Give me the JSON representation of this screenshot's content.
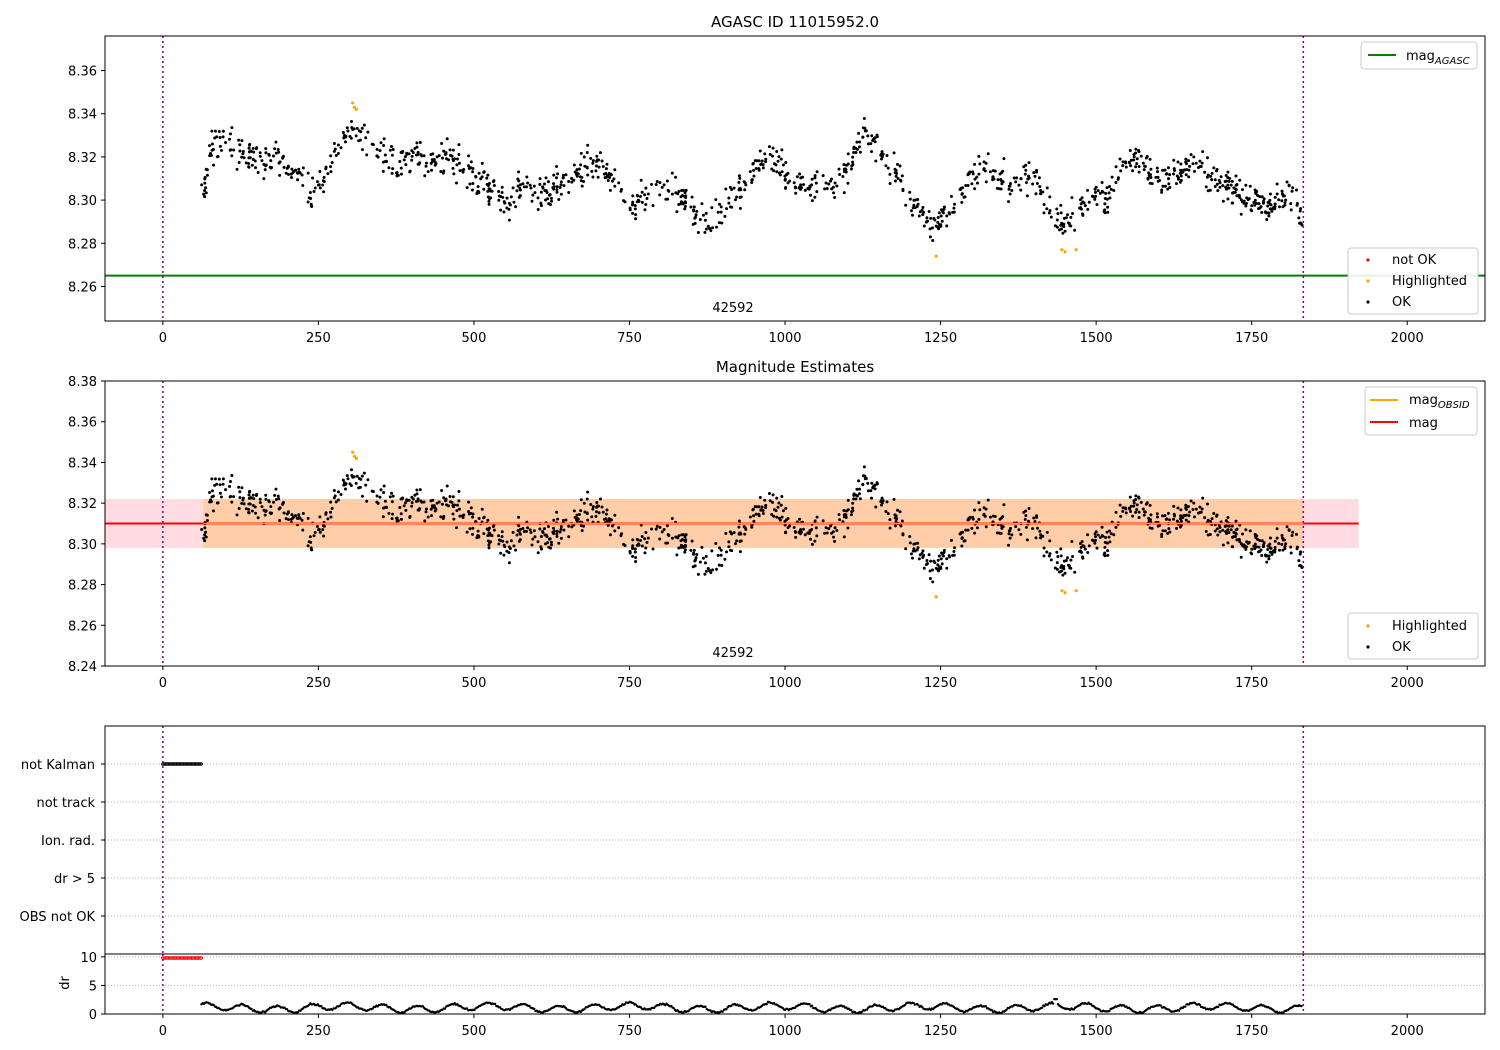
{
  "chart_data": [
    {
      "type": "scatter",
      "title": "AGASC ID 11015952.0",
      "xlabel": "",
      "ylabel": "",
      "xlim": [
        -93,
        2125
      ],
      "ylim": [
        8.244,
        8.376
      ],
      "x_ticks": [
        "0",
        "250",
        "500",
        "750",
        "1000",
        "1250",
        "1500",
        "1750",
        "2000"
      ],
      "y_ticks": [
        "8.26",
        "8.28",
        "8.30",
        "8.32",
        "8.34",
        "8.36"
      ],
      "obsid_label": "42592",
      "obsid_label_x": 920,
      "vlines": [
        0,
        1833
      ],
      "mag_agasc": 8.265,
      "mag_agasc_color": "#008000",
      "grid": false,
      "legend_top": {
        "position": "top-right",
        "entries": [
          {
            "text": "mag",
            "sub": "AGASC",
            "color": "#008000"
          }
        ]
      },
      "legend_bottom": {
        "position": "bottom-right",
        "entries": [
          {
            "text": "not OK",
            "color": "#ff0000"
          },
          {
            "text": "Highlighted",
            "color": "#ffa500"
          },
          {
            "text": "OK",
            "color": "#000000"
          }
        ]
      },
      "series": [
        {
          "name": "OK",
          "color": "#000000",
          "x": [
            65,
            80,
            100,
            120,
            140,
            160,
            180,
            200,
            220,
            240,
            260,
            280,
            300,
            320,
            340,
            360,
            380,
            400,
            420,
            440,
            460,
            480,
            500,
            520,
            540,
            560,
            580,
            600,
            620,
            640,
            660,
            680,
            700,
            720,
            740,
            760,
            780,
            800,
            820,
            840,
            860,
            880,
            900,
            920,
            940,
            960,
            980,
            1000,
            1020,
            1040,
            1060,
            1080,
            1100,
            1120,
            1140,
            1160,
            1180,
            1200,
            1220,
            1240,
            1260,
            1280,
            1300,
            1320,
            1340,
            1360,
            1380,
            1400,
            1420,
            1440,
            1460,
            1480,
            1500,
            1520,
            1540,
            1560,
            1580,
            1600,
            1620,
            1640,
            1660,
            1680,
            1700,
            1720,
            1740,
            1760,
            1780,
            1800,
            1820,
            1830
          ],
          "y": [
            8.305,
            8.325,
            8.327,
            8.322,
            8.32,
            8.318,
            8.322,
            8.315,
            8.31,
            8.302,
            8.312,
            8.325,
            8.332,
            8.328,
            8.322,
            8.318,
            8.316,
            8.32,
            8.318,
            8.316,
            8.322,
            8.315,
            8.31,
            8.308,
            8.302,
            8.298,
            8.305,
            8.303,
            8.305,
            8.308,
            8.31,
            8.315,
            8.318,
            8.31,
            8.303,
            8.298,
            8.302,
            8.305,
            8.303,
            8.3,
            8.292,
            8.287,
            8.297,
            8.303,
            8.308,
            8.318,
            8.32,
            8.312,
            8.305,
            8.308,
            8.305,
            8.307,
            8.312,
            8.33,
            8.33,
            8.318,
            8.313,
            8.3,
            8.293,
            8.288,
            8.292,
            8.303,
            8.31,
            8.316,
            8.31,
            8.308,
            8.31,
            8.313,
            8.3,
            8.29,
            8.292,
            8.298,
            8.303,
            8.3,
            8.318,
            8.322,
            8.315,
            8.31,
            8.312,
            8.315,
            8.318,
            8.313,
            8.308,
            8.305,
            8.302,
            8.3,
            8.295,
            8.302,
            8.3,
            8.292
          ]
        },
        {
          "name": "Highlighted",
          "color": "#ffa500",
          "x": [
            305,
            308,
            311,
            1243,
            1445,
            1450,
            1468
          ],
          "y": [
            8.345,
            8.343,
            8.342,
            8.274,
            8.277,
            8.276,
            8.277
          ]
        }
      ]
    },
    {
      "type": "scatter",
      "title": "Magnitude Estimates",
      "xlabel": "",
      "ylabel": "",
      "xlim": [
        -93,
        2125
      ],
      "ylim": [
        8.24,
        8.38
      ],
      "x_ticks": [
        "0",
        "250",
        "500",
        "750",
        "1000",
        "1250",
        "1500",
        "1750",
        "2000"
      ],
      "y_ticks": [
        "8.24",
        "8.26",
        "8.28",
        "8.30",
        "8.32",
        "8.34",
        "8.36",
        "8.38"
      ],
      "obsid_label": "42592",
      "obsid_label_x": 920,
      "vlines": [
        0,
        1833
      ],
      "mag_line": {
        "value": 8.31,
        "color": "#ff0000",
        "x_range": [
          -93,
          1922
        ]
      },
      "mag_band": {
        "low": 8.298,
        "high": 8.322,
        "color": "#ffc0cb",
        "x_range": [
          -93,
          1922
        ]
      },
      "mag_obsid": {
        "value": 8.31,
        "low": 8.298,
        "high": 8.322,
        "color": "#ffa500",
        "x_range": [
          65,
          1833
        ]
      },
      "grid": false,
      "legend_top": {
        "position": "top-right",
        "entries": [
          {
            "text": "mag",
            "sub": "OBSID",
            "color": "#ffa500"
          },
          {
            "text": "mag",
            "sub": "",
            "color": "#ff0000"
          }
        ]
      },
      "legend_bottom": {
        "position": "bottom-right",
        "entries": [
          {
            "text": "Highlighted",
            "color": "#ffa500"
          },
          {
            "text": "OK",
            "color": "#000000"
          }
        ]
      }
    },
    {
      "type": "scatter",
      "title": "",
      "xlim": [
        -93,
        2125
      ],
      "categories": [
        "not Kalman",
        "not track",
        "Ion. rad.",
        "dr > 5",
        "OBS not OK"
      ],
      "flag_points": [
        {
          "category": "not Kalman",
          "x_range": [
            0,
            62
          ],
          "color": "#000000"
        }
      ],
      "grid": true,
      "vlines": [
        0,
        1833
      ]
    },
    {
      "type": "scatter",
      "title": "",
      "ylabel": "dr",
      "xlim": [
        -93,
        2125
      ],
      "ylim": [
        0,
        10.5
      ],
      "x_ticks": [
        "0",
        "250",
        "500",
        "750",
        "1000",
        "1250",
        "1500",
        "1750",
        "2000"
      ],
      "y_ticks": [
        "0",
        "5",
        "10"
      ],
      "dr_saturated": {
        "x_range": [
          0,
          62
        ],
        "value": 9.8,
        "color": "#ff0000"
      },
      "dr_mean": 1.1,
      "vlines": [
        0,
        1833
      ]
    }
  ]
}
